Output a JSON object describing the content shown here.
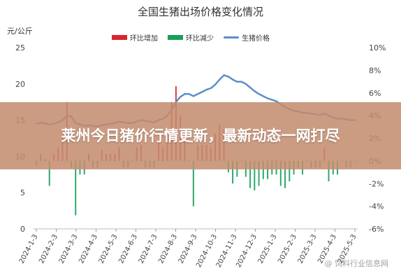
{
  "chart_data": {
    "type": "bar+line",
    "title": "全国生猪出场价格变化情况",
    "y_left_unit": "元/公斤",
    "y_left_ticks": [
      0,
      5,
      10,
      15,
      20,
      25
    ],
    "y_left_range": [
      0,
      25
    ],
    "y_right_ticks": [
      "-6%",
      "-4%",
      "-2%",
      "0%",
      "2%",
      "4%",
      "6%",
      "8%",
      "10%"
    ],
    "y_right_range": [
      -6,
      10
    ],
    "x_tick_labels": [
      "2024-1-3",
      "2024-2-3",
      "2024-3-3",
      "2024-4-3",
      "2024-5-3",
      "2024-6-3",
      "2024-7-3",
      "2024-8-3",
      "2024-9-3",
      "2024-10-3",
      "2024-11-3",
      "2024-12-3",
      "2025-1-3",
      "2025-2-3",
      "2025-3-3",
      "2025-4-3",
      "2025-5-3"
    ],
    "legend": [
      {
        "name": "环比增加",
        "color": "#d9262c",
        "kind": "bar"
      },
      {
        "name": "环比减少",
        "color": "#1a9e5a",
        "kind": "bar"
      },
      {
        "name": "生猪价格",
        "color": "#5b8fc7",
        "kind": "line"
      }
    ],
    "price_series": [
      14.5,
      14.6,
      14.6,
      14.4,
      14.5,
      14.7,
      15.0,
      15.6,
      15.5,
      14.6,
      14.4,
      14.2,
      14.3,
      14.2,
      14.1,
      14.3,
      14.4,
      14.5,
      14.6,
      14.8,
      14.7,
      14.6,
      14.6,
      14.8,
      15.0,
      14.9,
      14.8,
      14.7,
      15.0,
      15.2,
      15.6,
      16.4,
      17.5,
      18.2,
      18.6,
      18.6,
      18.3,
      18.6,
      18.9,
      19.2,
      19.4,
      19.9,
      20.6,
      21.2,
      21.0,
      20.6,
      20.3,
      20.3,
      20.0,
      19.5,
      19.0,
      18.6,
      18.3,
      18.0,
      17.8,
      17.6,
      17.2,
      16.8,
      16.5,
      16.3,
      16.2,
      16.0,
      16.0,
      15.9,
      15.8,
      15.7,
      15.9,
      15.6,
      15.4,
      15.2,
      15.2,
      15.1,
      15.0,
      15.0
    ],
    "mom_change_pct": [
      -0.4,
      0.6,
      0.2,
      -2.2,
      0.6,
      1.2,
      2.0,
      5.2,
      -0.6,
      -4.8,
      -1.2,
      -1.2,
      0.6,
      -0.6,
      -0.6,
      1.0,
      0.6,
      0.6,
      0.6,
      1.2,
      -0.6,
      -0.6,
      0.0,
      1.2,
      1.4,
      -0.6,
      -0.6,
      -0.6,
      1.6,
      1.2,
      2.6,
      5.2,
      6.6,
      4.0,
      2.2,
      0.0,
      -4.0,
      1.4,
      1.4,
      1.4,
      1.2,
      2.4,
      3.2,
      2.8,
      -1.0,
      -2.0,
      -1.4,
      0.0,
      -1.4,
      -2.4,
      -2.6,
      -2.2,
      -1.6,
      -1.6,
      -1.2,
      -1.2,
      -2.2,
      -2.4,
      -1.8,
      -1.2,
      -0.6,
      -1.2,
      0.0,
      -0.6,
      -0.6,
      -0.6,
      1.2,
      -1.8,
      -1.2,
      -1.2,
      0.0,
      -0.6,
      -0.6,
      0.0
    ]
  },
  "overlay": {
    "headline": "莱州今日猪价行情更新，最新动态一网打尽"
  },
  "watermark": "@ 饲料行业信息网"
}
